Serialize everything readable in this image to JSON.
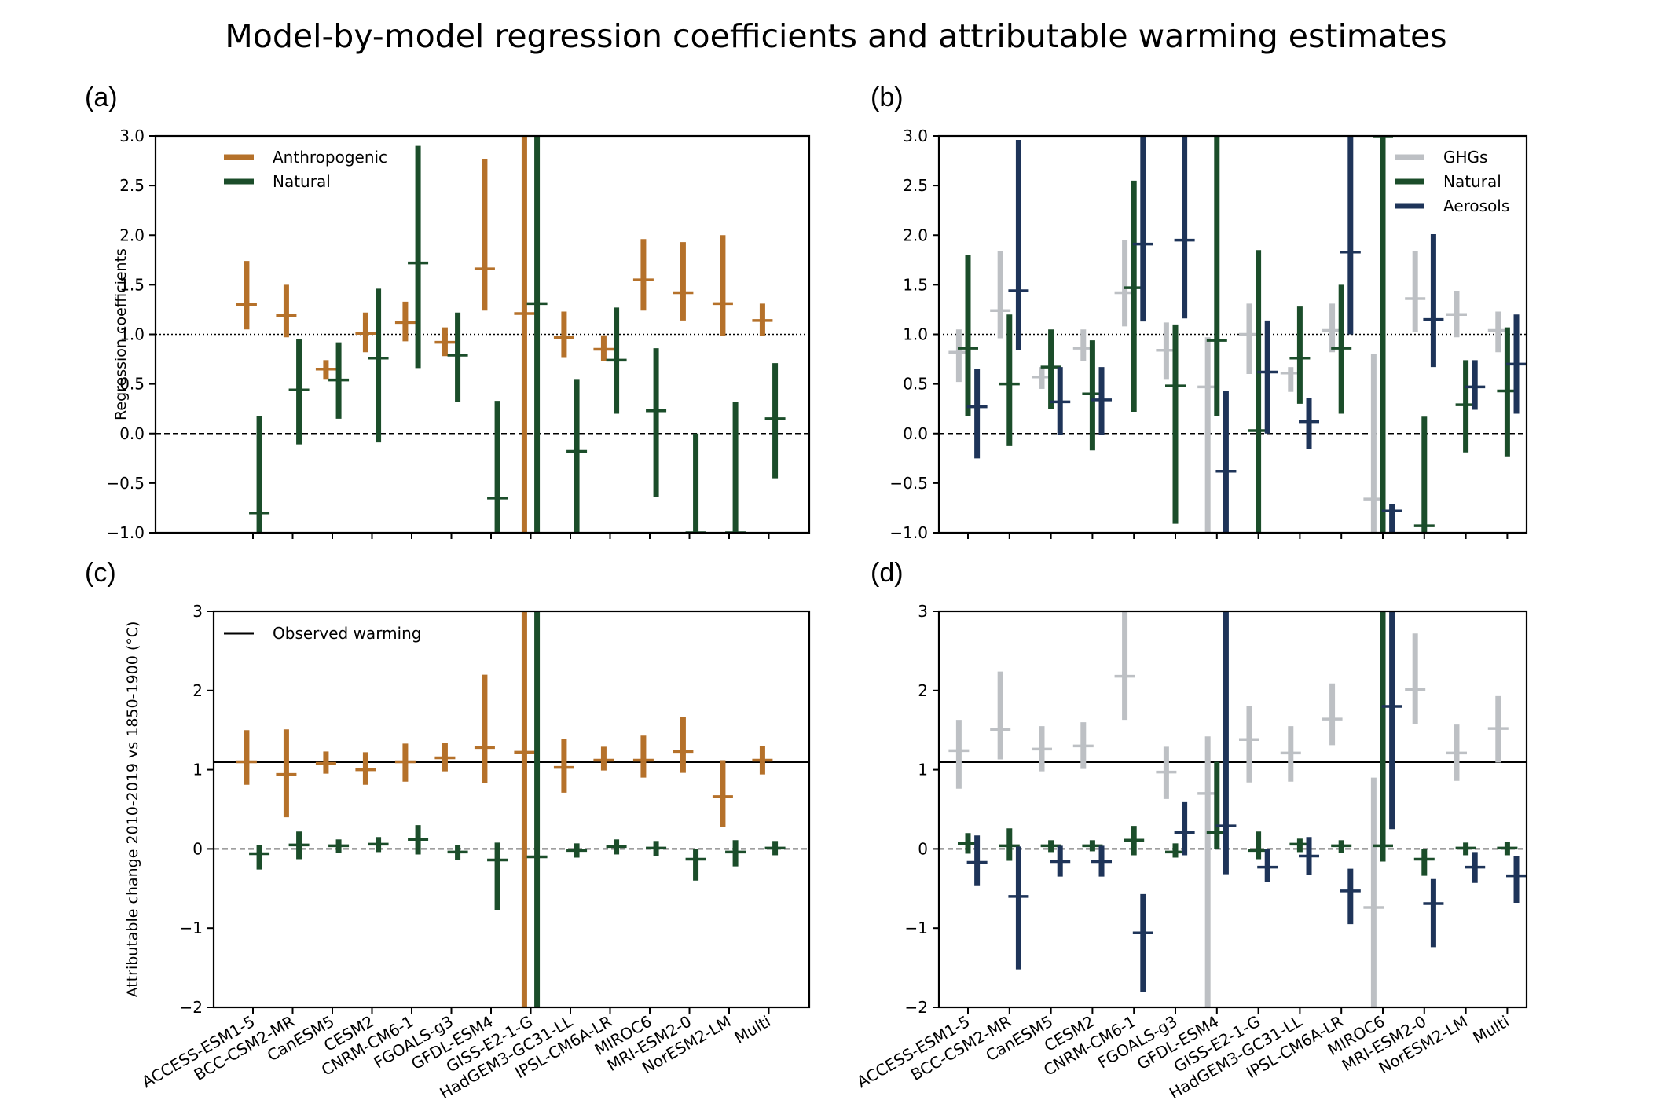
{
  "title": "Model-by-model regression coefficients and attributable warming estimates",
  "colors": {
    "anthropogenic": "#b5712a",
    "natural": "#1b4d2a",
    "ghgs": "#bdc0c4",
    "aerosols": "#1e3459"
  },
  "chart_data": [
    {
      "panel": "(a)",
      "type": "errorbar",
      "ylabel": "Regression coefficients",
      "ylim": [
        -1.0,
        3.0
      ],
      "yticks": [
        "−1.0",
        "−0.5",
        "0.0",
        "0.5",
        "1.0",
        "1.5",
        "2.0",
        "2.5",
        "3.0"
      ],
      "reference_lines": [
        {
          "y": 1.0,
          "style": "dotted"
        },
        {
          "y": 0.0,
          "style": "dashed"
        }
      ],
      "legend": {
        "position": "upper-left",
        "entries": [
          "Anthropogenic",
          "Natural"
        ]
      },
      "categories": [
        "ACCESS-ESM1-5",
        "BCC-CSM2-MR",
        "CanESM5",
        "CESM2",
        "CNRM-CM6-1",
        "FGOALS-g3",
        "GFDL-ESM4",
        "GISS-E2-1-G",
        "HadGEM3-GC31-LL",
        "IPSL-CM6A-LR",
        "MIROC6",
        "MRI-ESM2-0",
        "NorESM2-LM",
        "Multi"
      ],
      "series": [
        {
          "name": "Anthropogenic",
          "color_key": "anthropogenic",
          "offset": -0.16,
          "best": [
            1.3,
            1.19,
            0.65,
            1.01,
            1.12,
            0.92,
            1.66,
            1.21,
            0.97,
            0.85,
            1.55,
            1.42,
            1.31,
            1.14
          ],
          "low": [
            1.05,
            0.97,
            0.55,
            0.82,
            0.93,
            0.78,
            1.24,
            -1.0,
            0.77,
            0.73,
            1.24,
            1.14,
            0.98,
            0.98
          ],
          "high": [
            1.74,
            1.5,
            0.74,
            1.22,
            1.33,
            1.07,
            2.77,
            3.0,
            1.23,
            0.99,
            1.96,
            1.93,
            2.0,
            1.31
          ]
        },
        {
          "name": "Natural",
          "color_key": "natural",
          "offset": 0.16,
          "best": [
            -0.8,
            0.44,
            0.54,
            0.76,
            1.72,
            0.79,
            -0.65,
            1.31,
            -0.18,
            0.74,
            0.23,
            -1.0,
            -1.0,
            0.15
          ],
          "low": [
            -1.0,
            -0.11,
            0.15,
            -0.09,
            0.66,
            0.32,
            -1.0,
            -1.0,
            -1.0,
            0.2,
            -0.64,
            -1.0,
            -1.0,
            -0.45
          ],
          "high": [
            0.18,
            0.95,
            0.92,
            1.46,
            2.9,
            1.22,
            0.33,
            3.0,
            0.55,
            1.27,
            0.86,
            0.0,
            0.32,
            0.71
          ]
        }
      ]
    },
    {
      "panel": "(b)",
      "type": "errorbar",
      "ylim": [
        -1.0,
        3.0
      ],
      "yticks": [
        "−1.0",
        "−0.5",
        "0.0",
        "0.5",
        "1.0",
        "1.5",
        "2.0",
        "2.5",
        "3.0"
      ],
      "reference_lines": [
        {
          "y": 1.0,
          "style": "dotted"
        },
        {
          "y": 0.0,
          "style": "dashed"
        }
      ],
      "legend": {
        "position": "upper-right",
        "entries": [
          "GHGs",
          "Natural",
          "Aerosols"
        ]
      },
      "categories": [
        "ACCESS-ESM1-5",
        "BCC-CSM2-MR",
        "CanESM5",
        "CESM2",
        "CNRM-CM6-1",
        "FGOALS-g3",
        "GFDL-ESM4",
        "GISS-E2-1-G",
        "HadGEM3-GC31-LL",
        "IPSL-CM6A-LR",
        "MIROC6",
        "MRI-ESM2-0",
        "NorESM2-LM",
        "Multi"
      ],
      "series": [
        {
          "name": "GHGs",
          "color_key": "ghgs",
          "offset": -0.22,
          "best": [
            0.82,
            1.24,
            0.57,
            0.86,
            1.42,
            0.84,
            0.47,
            1.0,
            0.61,
            1.04,
            -0.66,
            1.36,
            1.2,
            1.04
          ],
          "low": [
            0.52,
            0.96,
            0.45,
            0.73,
            1.08,
            0.55,
            -1.0,
            0.6,
            0.42,
            0.82,
            -1.0,
            1.02,
            0.97,
            0.82
          ],
          "high": [
            1.05,
            1.84,
            0.67,
            1.05,
            1.95,
            1.12,
            0.97,
            1.31,
            0.67,
            1.31,
            0.8,
            1.84,
            1.44,
            1.23
          ]
        },
        {
          "name": "Natural",
          "color_key": "natural",
          "offset": 0.0,
          "best": [
            0.86,
            0.5,
            0.67,
            0.4,
            1.47,
            0.48,
            0.94,
            0.03,
            0.76,
            0.86,
            3.0,
            -0.93,
            0.29,
            0.43
          ],
          "low": [
            0.18,
            -0.12,
            0.25,
            -0.17,
            0.22,
            -0.91,
            0.18,
            -1.0,
            0.3,
            0.2,
            -1.0,
            -1.0,
            -0.19,
            -0.23
          ],
          "high": [
            1.8,
            1.2,
            1.05,
            0.94,
            2.55,
            1.1,
            3.0,
            1.85,
            1.28,
            1.5,
            3.0,
            0.17,
            0.74,
            1.07
          ]
        },
        {
          "name": "Aerosols",
          "color_key": "aerosols",
          "offset": 0.22,
          "best": [
            0.27,
            1.44,
            0.32,
            0.34,
            1.91,
            1.95,
            -0.38,
            0.62,
            0.12,
            1.83,
            -0.78,
            1.15,
            0.47,
            0.7
          ],
          "low": [
            -0.25,
            0.84,
            -0.01,
            -0.01,
            1.13,
            1.16,
            -1.0,
            0.0,
            -0.16,
            1.0,
            -1.0,
            0.67,
            0.24,
            0.2
          ],
          "high": [
            0.65,
            2.96,
            0.67,
            0.67,
            3.0,
            3.0,
            0.43,
            1.14,
            0.36,
            3.0,
            -0.71,
            2.01,
            0.74,
            1.2
          ]
        }
      ]
    },
    {
      "panel": "(c)",
      "type": "errorbar",
      "ylabel": "Attributable change 2010-2019 vs 1850-1900 (°C)",
      "ylim": [
        -2,
        3
      ],
      "yticks": [
        "−2",
        "−1",
        "0",
        "1",
        "2",
        "3"
      ],
      "reference_lines": [
        {
          "y": 1.1,
          "style": "solid"
        },
        {
          "y": 0.0,
          "style": "dashed"
        }
      ],
      "legend": {
        "position": "upper-left",
        "entries": [
          "Observed warming"
        ]
      },
      "categories": [
        "ACCESS-ESM1-5",
        "BCC-CSM2-MR",
        "CanESM5",
        "CESM2",
        "CNRM-CM6-1",
        "FGOALS-g3",
        "GFDL-ESM4",
        "GISS-E2-1-G",
        "HadGEM3-GC31-LL",
        "IPSL-CM6A-LR",
        "MIROC6",
        "MRI-ESM2-0",
        "NorESM2-LM",
        "Multi"
      ],
      "series": [
        {
          "name": "Anthropogenic",
          "color_key": "anthropogenic",
          "offset": -0.16,
          "best": [
            1.1,
            0.94,
            1.08,
            1.0,
            1.1,
            1.15,
            1.28,
            1.22,
            1.03,
            1.12,
            1.12,
            1.23,
            0.66,
            1.12
          ],
          "low": [
            0.81,
            0.4,
            0.95,
            0.81,
            0.85,
            0.98,
            0.83,
            -2.0,
            0.71,
            0.99,
            0.9,
            0.96,
            0.28,
            0.94
          ],
          "high": [
            1.5,
            1.51,
            1.23,
            1.22,
            1.33,
            1.34,
            2.2,
            3.0,
            1.39,
            1.29,
            1.43,
            1.67,
            1.12,
            1.3
          ]
        },
        {
          "name": "Natural",
          "color_key": "natural",
          "offset": 0.16,
          "best": [
            -0.06,
            0.05,
            0.04,
            0.06,
            0.12,
            -0.04,
            -0.14,
            -0.1,
            -0.02,
            0.03,
            0.01,
            -0.13,
            -0.04,
            0.01
          ],
          "low": [
            -0.26,
            -0.13,
            -0.05,
            -0.04,
            -0.07,
            -0.14,
            -0.77,
            -2.0,
            -0.11,
            -0.07,
            -0.09,
            -0.4,
            -0.22,
            -0.08
          ],
          "high": [
            0.05,
            0.22,
            0.12,
            0.15,
            0.3,
            0.05,
            0.08,
            3.0,
            0.07,
            0.12,
            0.1,
            0.0,
            0.11,
            0.1
          ]
        }
      ]
    },
    {
      "panel": "(d)",
      "type": "errorbar",
      "ylim": [
        -2,
        3
      ],
      "yticks": [
        "−2",
        "−1",
        "0",
        "1",
        "2",
        "3"
      ],
      "reference_lines": [
        {
          "y": 1.1,
          "style": "solid"
        },
        {
          "y": 0.0,
          "style": "dashed"
        }
      ],
      "categories": [
        "ACCESS-ESM1-5",
        "BCC-CSM2-MR",
        "CanESM5",
        "CESM2",
        "CNRM-CM6-1",
        "FGOALS-g3",
        "GFDL-ESM4",
        "GISS-E2-1-G",
        "HadGEM3-GC31-LL",
        "IPSL-CM6A-LR",
        "MIROC6",
        "MRI-ESM2-0",
        "NorESM2-LM",
        "Multi"
      ],
      "series": [
        {
          "name": "GHGs",
          "color_key": "ghgs",
          "offset": -0.22,
          "best": [
            1.24,
            1.51,
            1.26,
            1.3,
            2.18,
            0.97,
            0.7,
            1.38,
            1.21,
            1.64,
            -0.74,
            2.01,
            1.21,
            1.52
          ],
          "low": [
            0.76,
            1.13,
            0.98,
            1.01,
            1.63,
            0.63,
            -2.0,
            0.84,
            0.85,
            1.31,
            -2.0,
            1.58,
            0.86,
            1.09
          ],
          "high": [
            1.63,
            2.24,
            1.55,
            1.6,
            3.0,
            1.29,
            1.42,
            1.8,
            1.55,
            2.09,
            0.9,
            2.72,
            1.57,
            1.93
          ]
        },
        {
          "name": "Natural",
          "color_key": "natural",
          "offset": 0.0,
          "best": [
            0.07,
            0.04,
            0.04,
            0.04,
            0.11,
            -0.04,
            0.21,
            -0.02,
            0.06,
            0.04,
            0.04,
            -0.13,
            0.01,
            0.01
          ],
          "low": [
            -0.06,
            -0.15,
            -0.04,
            -0.03,
            -0.08,
            -0.11,
            0.0,
            -0.13,
            -0.04,
            -0.05,
            -0.16,
            -0.34,
            -0.08,
            -0.08
          ],
          "high": [
            0.2,
            0.26,
            0.11,
            0.11,
            0.29,
            0.07,
            1.1,
            0.22,
            0.13,
            0.11,
            3.0,
            0.0,
            0.08,
            0.09
          ]
        },
        {
          "name": "Aerosols",
          "color_key": "aerosols",
          "offset": 0.22,
          "best": [
            -0.17,
            -0.6,
            -0.16,
            -0.16,
            -1.06,
            0.21,
            0.29,
            -0.23,
            -0.09,
            -0.53,
            1.8,
            -0.69,
            -0.23,
            -0.34
          ],
          "low": [
            -0.46,
            -1.52,
            -0.35,
            -0.35,
            -1.81,
            -0.08,
            -0.32,
            -0.42,
            -0.33,
            -0.95,
            0.25,
            -1.24,
            -0.43,
            -0.68
          ],
          "high": [
            0.17,
            0.03,
            0.04,
            0.04,
            -0.57,
            0.59,
            3.0,
            0.0,
            0.15,
            -0.25,
            3.0,
            -0.38,
            -0.04,
            -0.09
          ]
        }
      ]
    }
  ]
}
